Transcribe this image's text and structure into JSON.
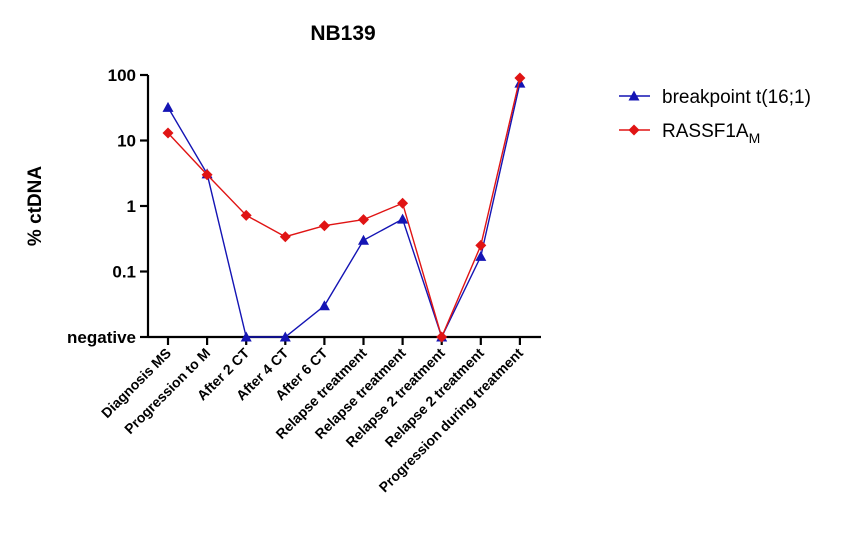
{
  "chart_data": {
    "type": "line",
    "title": "NB139",
    "ylabel": "% ctDNA",
    "xlabel": "",
    "yscale": "log",
    "ylim": [
      0.01,
      100
    ],
    "yticks": [
      {
        "value": 0.01,
        "label": "negative"
      },
      {
        "value": 0.1,
        "label": "0.1"
      },
      {
        "value": 1,
        "label": "1"
      },
      {
        "value": 10,
        "label": "10"
      },
      {
        "value": 100,
        "label": "100"
      }
    ],
    "categories": [
      "Diagnosis MS",
      "Progression to M",
      "After 2 CT",
      "After 4 CT",
      "After 6 CT",
      "Relapse treatment",
      "Relapse treatment",
      "Relapse 2 treatment",
      "Relapse 2 treatment",
      "Progression during treatment"
    ],
    "series": [
      {
        "name": "breakpoint t(16;1)",
        "color": "#1414b4",
        "marker": "triangle",
        "values": [
          32,
          3.1,
          0.01,
          0.01,
          0.03,
          0.3,
          0.63,
          0.01,
          0.17,
          75
        ]
      },
      {
        "name": "RASSF1A",
        "name_subscript": "M",
        "color": "#e01414",
        "marker": "diamond",
        "values": [
          13,
          3.0,
          0.72,
          0.34,
          0.5,
          0.62,
          1.1,
          0.01,
          0.25,
          90
        ]
      }
    ],
    "legend_position": "top-right",
    "grid": false
  }
}
